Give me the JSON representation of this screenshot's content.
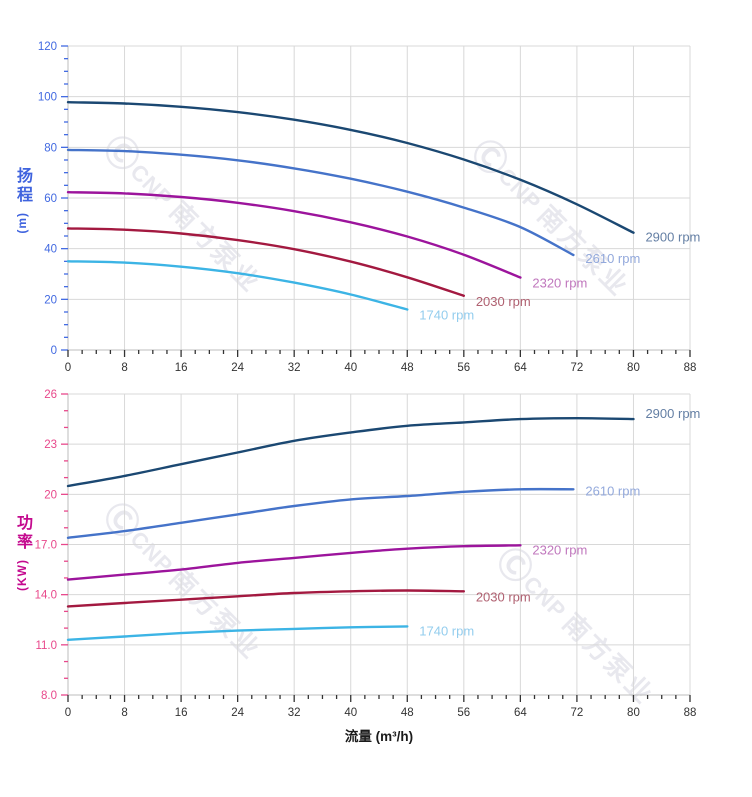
{
  "figure": {
    "background": "#ffffff",
    "watermark": {
      "symbol": "Ⓒ",
      "latin": "CNP",
      "text": "南方泵业",
      "color": "#e8e8ee"
    }
  },
  "axis_titles": {
    "head": {
      "cjk": "扬程",
      "unit": "(m)",
      "color": "#3f63de"
    },
    "power": {
      "cjk": "功率",
      "unit": "(KW)",
      "color": "#c40a8e"
    },
    "flow": {
      "label": "流量 (m³/h)",
      "color": "#1b1b1b"
    }
  },
  "chart_data": [
    {
      "type": "line",
      "name": "head-vs-flow",
      "xlabel": "流量 (m³/h)",
      "ylabel": "扬程 (m)",
      "xlim": [
        0,
        88
      ],
      "ylim": [
        0,
        120
      ],
      "x_major": 8,
      "x_minor": 2,
      "y_major": 20,
      "y_minor": 5,
      "grid": true,
      "legend_position": "right-of-curve-end",
      "axis_color": "#4169e1",
      "x_tick_color": "#333333",
      "x_ticks": [
        "0",
        "8",
        "16",
        "24",
        "32",
        "40",
        "48",
        "56",
        "64",
        "72",
        "80",
        "88"
      ],
      "y_ticks": [
        {
          "v": 0,
          "label": "0"
        },
        {
          "v": 20,
          "label": "20"
        },
        {
          "v": 40,
          "label": "40"
        },
        {
          "v": 60,
          "label": "60"
        },
        {
          "v": 80,
          "label": "80"
        },
        {
          "v": 100,
          "label": "100"
        },
        {
          "v": 120,
          "label": "120"
        }
      ],
      "series": [
        {
          "name": "2900 rpm",
          "color": "#1b4872",
          "label_color": "#647fa4",
          "label_dy": 9,
          "points": [
            [
              0,
              97.8
            ],
            [
              8,
              97.3
            ],
            [
              16,
              96.0
            ],
            [
              24,
              93.9
            ],
            [
              32,
              90.9
            ],
            [
              40,
              86.9
            ],
            [
              48,
              81.7
            ],
            [
              56,
              75.2
            ],
            [
              64,
              67.2
            ],
            [
              72,
              57.5
            ],
            [
              80,
              46.3
            ]
          ]
        },
        {
          "name": "2610 rpm",
          "color": "#4573c9",
          "label_color": "#93a9dc",
          "label_dy": 8,
          "points": [
            [
              0,
              79.0
            ],
            [
              8,
              78.5
            ],
            [
              16,
              77.1
            ],
            [
              24,
              74.9
            ],
            [
              32,
              71.7
            ],
            [
              40,
              67.6
            ],
            [
              48,
              62.5
            ],
            [
              56,
              56.2
            ],
            [
              64,
              48.5
            ],
            [
              71.5,
              37.5
            ]
          ]
        },
        {
          "name": "2320 rpm",
          "color": "#9c149c",
          "label_color": "#c077bd",
          "label_dy": 10,
          "points": [
            [
              0,
              62.3
            ],
            [
              8,
              61.8
            ],
            [
              16,
              60.4
            ],
            [
              24,
              58.1
            ],
            [
              32,
              54.8
            ],
            [
              40,
              50.4
            ],
            [
              48,
              44.8
            ],
            [
              56,
              37.6
            ],
            [
              64,
              28.6
            ]
          ]
        },
        {
          "name": "2030 rpm",
          "color": "#a31940",
          "label_color": "#b06171",
          "label_dy": 10,
          "points": [
            [
              0,
              48.0
            ],
            [
              8,
              47.5
            ],
            [
              16,
              46.0
            ],
            [
              24,
              43.4
            ],
            [
              32,
              39.8
            ],
            [
              40,
              34.9
            ],
            [
              48,
              28.7
            ],
            [
              56,
              21.4
            ]
          ]
        },
        {
          "name": "1740 rpm",
          "color": "#3cb4e5",
          "label_color": "#93cdee",
          "label_dy": 10,
          "points": [
            [
              0,
              35.0
            ],
            [
              8,
              34.5
            ],
            [
              16,
              32.9
            ],
            [
              24,
              30.3
            ],
            [
              32,
              26.6
            ],
            [
              40,
              21.9
            ],
            [
              48,
              16.0
            ]
          ]
        }
      ]
    },
    {
      "type": "line",
      "name": "power-vs-flow",
      "xlabel": "流量 (m³/h)",
      "ylabel": "功率 (KW)",
      "xlim": [
        0,
        88
      ],
      "ylim": [
        8,
        26
      ],
      "x_major": 8,
      "x_minor": 2,
      "y_major": 3,
      "y_minor": 1,
      "grid": true,
      "legend_position": "right-of-curve-end",
      "axis_color": "#e8488b",
      "x_tick_color": "#333333",
      "x_ticks": [
        "0",
        "8",
        "16",
        "24",
        "32",
        "40",
        "48",
        "56",
        "64",
        "72",
        "80",
        "88"
      ],
      "y_ticks": [
        {
          "v": 8,
          "label": "8.0"
        },
        {
          "v": 11,
          "label": "11.0"
        },
        {
          "v": 14,
          "label": "14.0"
        },
        {
          "v": 17,
          "label": "17.0"
        },
        {
          "v": 20,
          "label": "20"
        },
        {
          "v": 23,
          "label": "23"
        },
        {
          "v": 26,
          "label": "26"
        }
      ],
      "series": [
        {
          "name": "2900 rpm",
          "color": "#1b4872",
          "label_color": "#647fa4",
          "label_dy": -1,
          "points": [
            [
              0,
              20.5
            ],
            [
              8,
              21.1
            ],
            [
              16,
              21.8
            ],
            [
              24,
              22.5
            ],
            [
              32,
              23.2
            ],
            [
              40,
              23.7
            ],
            [
              48,
              24.1
            ],
            [
              56,
              24.3
            ],
            [
              64,
              24.5
            ],
            [
              72,
              24.55
            ],
            [
              80,
              24.5
            ]
          ]
        },
        {
          "name": "2610 rpm",
          "color": "#4573c9",
          "label_color": "#93a9dc",
          "label_dy": 6,
          "points": [
            [
              0,
              17.4
            ],
            [
              8,
              17.8
            ],
            [
              16,
              18.3
            ],
            [
              24,
              18.8
            ],
            [
              32,
              19.3
            ],
            [
              40,
              19.7
            ],
            [
              48,
              19.9
            ],
            [
              56,
              20.15
            ],
            [
              64,
              20.3
            ],
            [
              71.5,
              20.3
            ]
          ]
        },
        {
          "name": "2320 rpm",
          "color": "#9c149c",
          "label_color": "#c077bd",
          "label_dy": 9,
          "points": [
            [
              0,
              14.9
            ],
            [
              8,
              15.2
            ],
            [
              16,
              15.5
            ],
            [
              24,
              15.9
            ],
            [
              32,
              16.2
            ],
            [
              40,
              16.5
            ],
            [
              48,
              16.75
            ],
            [
              56,
              16.9
            ],
            [
              64,
              16.95
            ]
          ]
        },
        {
          "name": "2030 rpm",
          "color": "#a31940",
          "label_color": "#b06171",
          "label_dy": 10,
          "points": [
            [
              0,
              13.3
            ],
            [
              8,
              13.5
            ],
            [
              16,
              13.7
            ],
            [
              24,
              13.9
            ],
            [
              32,
              14.1
            ],
            [
              40,
              14.2
            ],
            [
              48,
              14.25
            ],
            [
              56,
              14.2
            ]
          ]
        },
        {
          "name": "1740 rpm",
          "color": "#3cb4e5",
          "label_color": "#93cdee",
          "label_dy": 9,
          "points": [
            [
              0,
              11.3
            ],
            [
              8,
              11.5
            ],
            [
              16,
              11.7
            ],
            [
              24,
              11.85
            ],
            [
              32,
              11.95
            ],
            [
              40,
              12.05
            ],
            [
              48,
              12.1
            ]
          ]
        }
      ]
    }
  ]
}
